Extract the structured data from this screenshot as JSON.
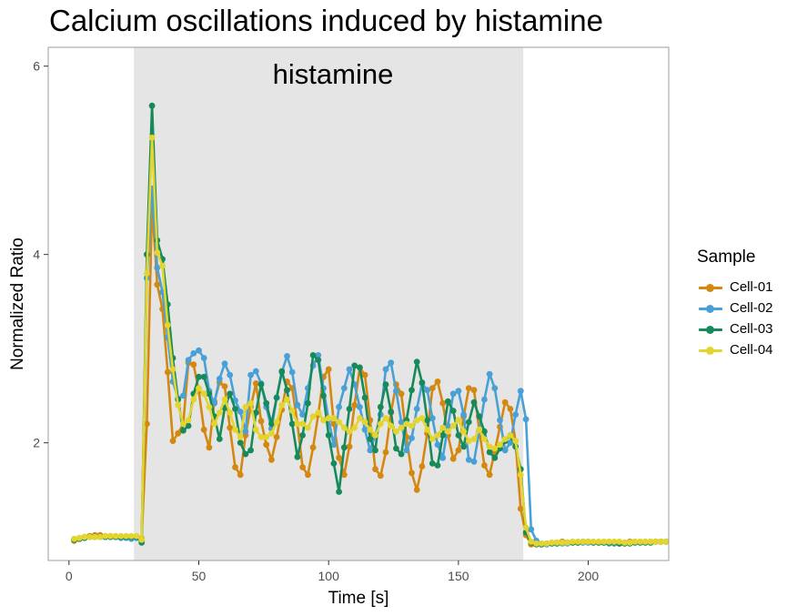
{
  "chart_data": {
    "type": "line",
    "title": "Calcium oscillations induced by histamine",
    "xlabel": "Time [s]",
    "ylabel": "Normalized Ratio",
    "xlim": [
      -8,
      231
    ],
    "ylim": [
      0.75,
      6.2
    ],
    "xticks": [
      0,
      50,
      100,
      150,
      200
    ],
    "yticks": [
      2,
      4,
      6
    ],
    "grid": false,
    "legend_title": "Sample",
    "legend_position": "right",
    "annotation": {
      "label": "histamine",
      "x_start": 25,
      "x_end": 175,
      "color": "#e5e5e5"
    },
    "x": [
      2,
      4,
      6,
      8,
      10,
      12,
      14,
      16,
      18,
      20,
      22,
      24,
      26,
      28,
      30,
      32,
      34,
      36,
      38,
      40,
      42,
      44,
      46,
      48,
      50,
      52,
      54,
      56,
      58,
      60,
      62,
      64,
      66,
      68,
      70,
      72,
      74,
      76,
      78,
      80,
      82,
      84,
      86,
      88,
      90,
      92,
      94,
      96,
      98,
      100,
      102,
      104,
      106,
      108,
      110,
      112,
      114,
      116,
      118,
      120,
      122,
      124,
      126,
      128,
      130,
      132,
      134,
      136,
      138,
      140,
      142,
      144,
      146,
      148,
      150,
      152,
      154,
      156,
      158,
      160,
      162,
      164,
      166,
      168,
      170,
      172,
      174,
      176,
      178,
      180,
      182,
      184,
      186,
      188,
      190,
      192,
      194,
      196,
      198,
      200,
      202,
      204,
      206,
      208,
      210,
      212,
      214,
      216,
      218,
      220,
      222,
      224,
      226,
      228,
      230
    ],
    "series": [
      {
        "name": "Cell-01",
        "color": "#d4880f",
        "values": [
          0.96,
          0.98,
          1.0,
          1.01,
          1.02,
          1.02,
          1.01,
          1.01,
          1.0,
          1.0,
          1.0,
          1.0,
          1.0,
          0.98,
          2.2,
          4.53,
          3.68,
          3.42,
          2.75,
          2.02,
          2.1,
          2.2,
          2.85,
          2.83,
          2.55,
          2.14,
          1.95,
          2.44,
          2.64,
          2.6,
          2.16,
          1.74,
          1.66,
          2.08,
          2.38,
          2.63,
          2.23,
          1.98,
          1.82,
          2.06,
          2.35,
          2.65,
          2.58,
          2.2,
          1.74,
          1.66,
          1.95,
          2.3,
          2.7,
          2.78,
          2.2,
          1.84,
          1.66,
          1.96,
          2.4,
          2.8,
          2.72,
          2.24,
          1.72,
          1.65,
          1.9,
          2.32,
          2.62,
          2.52,
          2.06,
          1.68,
          1.5,
          1.75,
          2.1,
          2.58,
          2.65,
          2.42,
          2.08,
          1.83,
          1.92,
          2.28,
          2.58,
          2.56,
          2.14,
          1.76,
          1.66,
          1.91,
          2.17,
          2.43,
          2.36,
          2.02,
          1.3,
          1.02,
          0.92,
          0.93,
          0.93,
          0.93,
          0.94,
          0.94,
          0.95,
          0.94,
          0.94,
          0.94,
          0.94,
          0.94,
          0.94,
          0.94,
          0.94,
          0.94,
          0.93,
          0.93,
          0.94,
          0.95,
          0.95,
          0.95,
          0.95,
          0.95,
          0.95,
          0.95,
          0.95
        ]
      },
      {
        "name": "Cell-02",
        "color": "#49a0d6",
        "values": [
          0.97,
          0.98,
          0.99,
          1.0,
          1.0,
          1.0,
          1.0,
          1.0,
          1.0,
          0.99,
          0.99,
          0.98,
          0.99,
          0.96,
          3.75,
          4.7,
          3.86,
          3.6,
          3.12,
          2.65,
          2.47,
          2.5,
          2.88,
          2.95,
          2.98,
          2.9,
          2.55,
          2.42,
          2.68,
          2.84,
          2.72,
          2.45,
          2.33,
          2.12,
          2.72,
          2.76,
          2.63,
          2.38,
          2.15,
          2.48,
          2.75,
          2.92,
          2.75,
          2.4,
          2.3,
          2.58,
          2.82,
          2.93,
          2.58,
          2.24,
          1.98,
          2.38,
          2.58,
          2.78,
          2.62,
          2.38,
          2.14,
          1.92,
          2.08,
          2.3,
          2.78,
          2.85,
          2.55,
          2.22,
          1.92,
          2.05,
          2.36,
          2.63,
          2.56,
          2.26,
          1.98,
          1.84,
          2.18,
          2.52,
          2.55,
          2.3,
          1.82,
          1.8,
          2.12,
          2.46,
          2.73,
          2.58,
          2.24,
          1.92,
          2.0,
          2.3,
          2.55,
          2.25,
          1.08,
          0.96,
          0.92,
          0.92,
          0.93,
          0.93,
          0.93,
          0.93,
          0.94,
          0.94,
          0.94,
          0.94,
          0.94,
          0.94,
          0.94,
          0.93,
          0.93,
          0.93,
          0.93,
          0.94,
          0.94,
          0.94,
          0.94,
          0.94,
          0.95,
          0.95,
          0.95
        ]
      },
      {
        "name": "Cell-03",
        "color": "#178a5b",
        "values": [
          0.97,
          0.98,
          0.99,
          1.0,
          1.0,
          1.0,
          1.0,
          1.0,
          1.0,
          1.0,
          1.0,
          1.0,
          1.0,
          0.94,
          4.0,
          5.58,
          4.15,
          3.95,
          3.47,
          2.9,
          2.46,
          2.13,
          2.18,
          2.52,
          2.7,
          2.7,
          2.52,
          2.28,
          2.04,
          2.37,
          2.52,
          2.36,
          2.0,
          1.88,
          1.92,
          2.32,
          2.62,
          2.42,
          2.2,
          2.48,
          2.76,
          2.56,
          2.2,
          1.85,
          2.08,
          2.42,
          2.93,
          2.88,
          2.5,
          2.08,
          1.78,
          1.48,
          1.95,
          2.36,
          2.82,
          2.8,
          2.48,
          2.04,
          1.92,
          2.38,
          2.62,
          2.33,
          1.94,
          1.88,
          2.24,
          2.56,
          2.86,
          2.64,
          2.24,
          1.78,
          1.76,
          2.08,
          2.44,
          2.34,
          2.08,
          1.96,
          2.22,
          2.43,
          2.28,
          2.12,
          1.9,
          1.84,
          1.94,
          2.02,
          2.08,
          1.96,
          1.72,
          1.05,
          0.94,
          0.92,
          0.92,
          0.93,
          0.93,
          0.93,
          0.94,
          0.94,
          0.94,
          0.94,
          0.95,
          0.95,
          0.94,
          0.94,
          0.94,
          0.94,
          0.94,
          0.93,
          0.93,
          0.93,
          0.94,
          0.94,
          0.94,
          0.94,
          0.95,
          0.95,
          0.95
        ]
      },
      {
        "name": "Cell-04",
        "color": "#e3d52e",
        "values": [
          0.98,
          0.99,
          1.0,
          1.0,
          1.0,
          1.0,
          1.01,
          1.01,
          1.01,
          1.01,
          1.01,
          1.01,
          1.01,
          0.97,
          3.8,
          5.24,
          4.02,
          3.88,
          3.25,
          2.78,
          2.4,
          2.2,
          2.24,
          2.46,
          2.58,
          2.52,
          2.38,
          2.2,
          2.32,
          2.46,
          2.32,
          2.14,
          2.06,
          2.38,
          2.42,
          2.14,
          2.06,
          2.06,
          2.1,
          2.22,
          2.4,
          2.46,
          2.34,
          2.2,
          2.2,
          2.16,
          2.28,
          2.32,
          2.24,
          2.26,
          2.26,
          2.22,
          2.16,
          2.12,
          2.16,
          2.26,
          2.22,
          2.14,
          2.08,
          2.2,
          2.26,
          2.18,
          2.12,
          2.16,
          2.2,
          2.18,
          2.24,
          2.26,
          2.14,
          2.04,
          2.08,
          2.16,
          2.12,
          2.18,
          2.24,
          2.12,
          2.02,
          2.04,
          2.14,
          2.04,
          1.96,
          1.94,
          1.98,
          2.04,
          2.08,
          2.02,
          1.66,
          1.1,
          0.95,
          0.93,
          0.93,
          0.93,
          0.94,
          0.94,
          0.94,
          0.94,
          0.95,
          0.95,
          0.95,
          0.95,
          0.95,
          0.95,
          0.95,
          0.95,
          0.95,
          0.95,
          0.94,
          0.94,
          0.95,
          0.95,
          0.95,
          0.95,
          0.95,
          0.95,
          0.95
        ]
      }
    ]
  }
}
